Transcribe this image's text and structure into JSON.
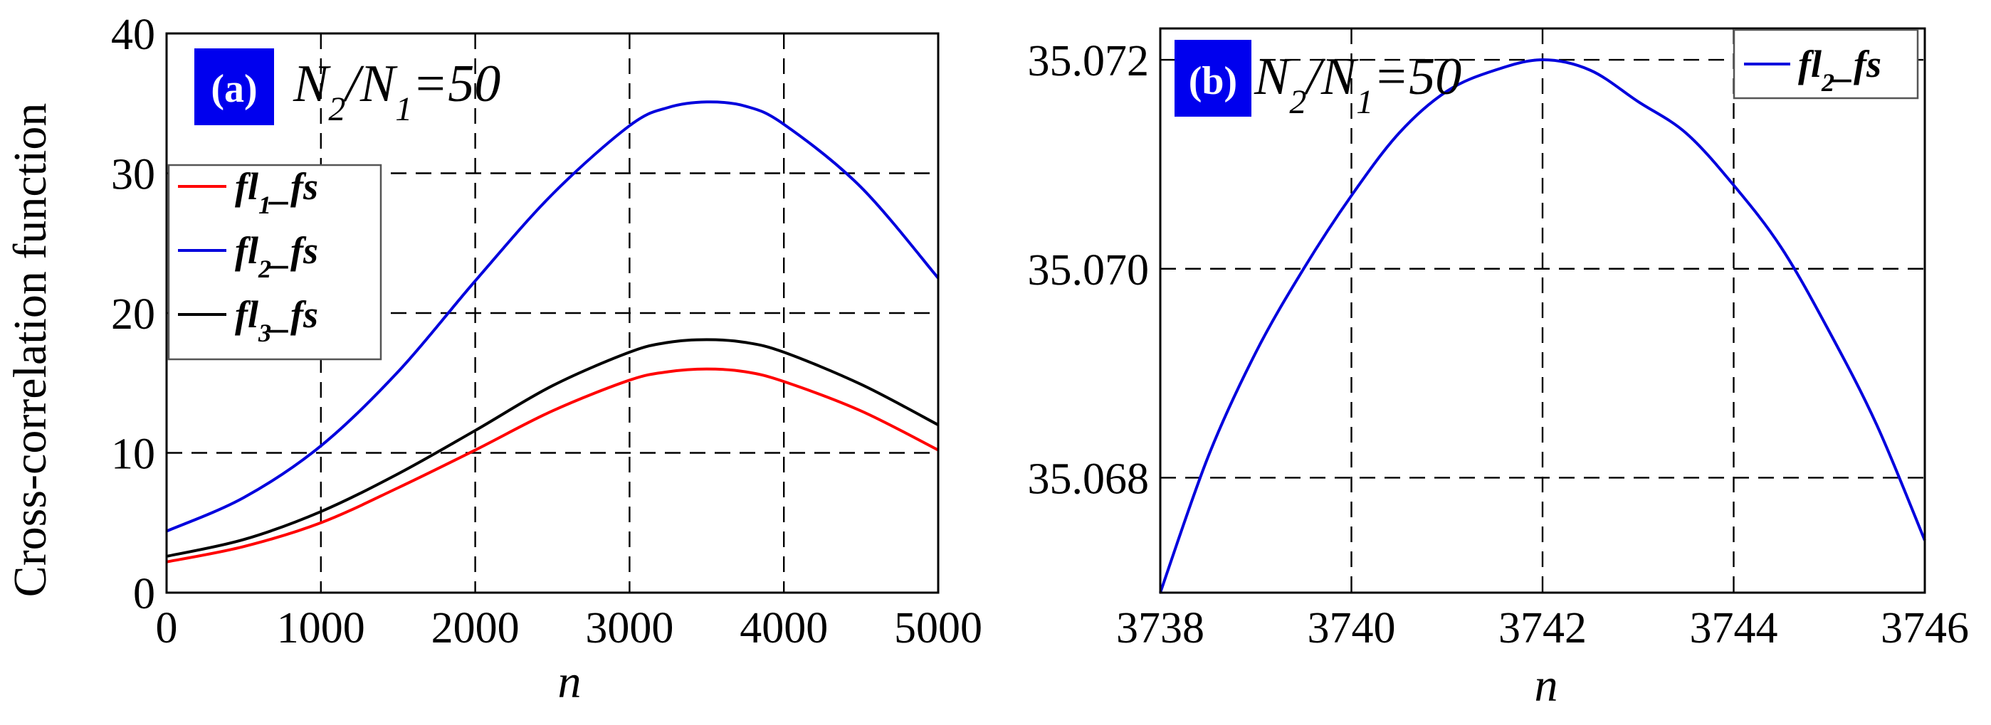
{
  "chart_data": [
    {
      "type": "line",
      "panel_label": "(a)",
      "annotation": "N2/N1=50",
      "ylabel": "Cross-correlation function",
      "xlabel": "n",
      "xlim": [
        0,
        5000
      ],
      "ylim": [
        0,
        40
      ],
      "xticks": [
        "0",
        "1000",
        "2000",
        "3000",
        "4000",
        "5000"
      ],
      "yticks": [
        "0",
        "10",
        "20",
        "30",
        "40"
      ],
      "grid": true,
      "legend_position": "middle-left",
      "series": [
        {
          "name": "fl1_fs",
          "color": "#ff0000",
          "x": [
            0,
            500,
            1000,
            1500,
            2000,
            2500,
            3000,
            3250,
            3500,
            3750,
            4000,
            4500,
            5000
          ],
          "y": [
            2.2,
            3.3,
            5.0,
            7.5,
            10.2,
            13.0,
            15.2,
            15.8,
            16.0,
            15.8,
            15.1,
            13.0,
            10.2
          ]
        },
        {
          "name": "fl2_fs",
          "color": "#0000dd",
          "x": [
            0,
            500,
            1000,
            1500,
            2000,
            2500,
            3000,
            3250,
            3500,
            3750,
            4000,
            4500,
            5000
          ],
          "y": [
            4.4,
            6.8,
            10.5,
            15.8,
            22.3,
            28.5,
            33.4,
            34.7,
            35.1,
            34.8,
            33.5,
            29.0,
            22.5
          ]
        },
        {
          "name": "fl3_fs",
          "color": "#000000",
          "x": [
            0,
            500,
            1000,
            1500,
            2000,
            2500,
            3000,
            3250,
            3500,
            3750,
            4000,
            4500,
            5000
          ],
          "y": [
            2.6,
            3.8,
            5.8,
            8.5,
            11.6,
            14.8,
            17.2,
            17.9,
            18.1,
            17.9,
            17.2,
            14.9,
            12.0
          ]
        }
      ]
    },
    {
      "type": "line",
      "panel_label": "(b)",
      "annotation": "N2/N1=50",
      "xlabel": "n",
      "xlim": [
        3738,
        3746
      ],
      "ylim": [
        35.0669,
        35.0723
      ],
      "xticks": [
        "3738",
        "3740",
        "3742",
        "3744",
        "3746"
      ],
      "yticks": [
        "35.068",
        "35.070",
        "35.072"
      ],
      "grid": true,
      "legend_position": "top-right",
      "series": [
        {
          "name": "fl2_fs",
          "color": "#0000dd",
          "x": [
            3738,
            3738.5,
            3739,
            3739.5,
            3740,
            3740.5,
            3741,
            3741.5,
            3742,
            3742.5,
            3743,
            3743.5,
            3744,
            3744.5,
            3745,
            3745.5,
            3746
          ],
          "y": [
            35.0669,
            35.0682,
            35.0692,
            35.07,
            35.0707,
            35.0713,
            35.0717,
            35.0719,
            35.072,
            35.0719,
            35.0716,
            35.0713,
            35.0708,
            35.0702,
            35.0694,
            35.0685,
            35.0674
          ]
        }
      ]
    }
  ]
}
